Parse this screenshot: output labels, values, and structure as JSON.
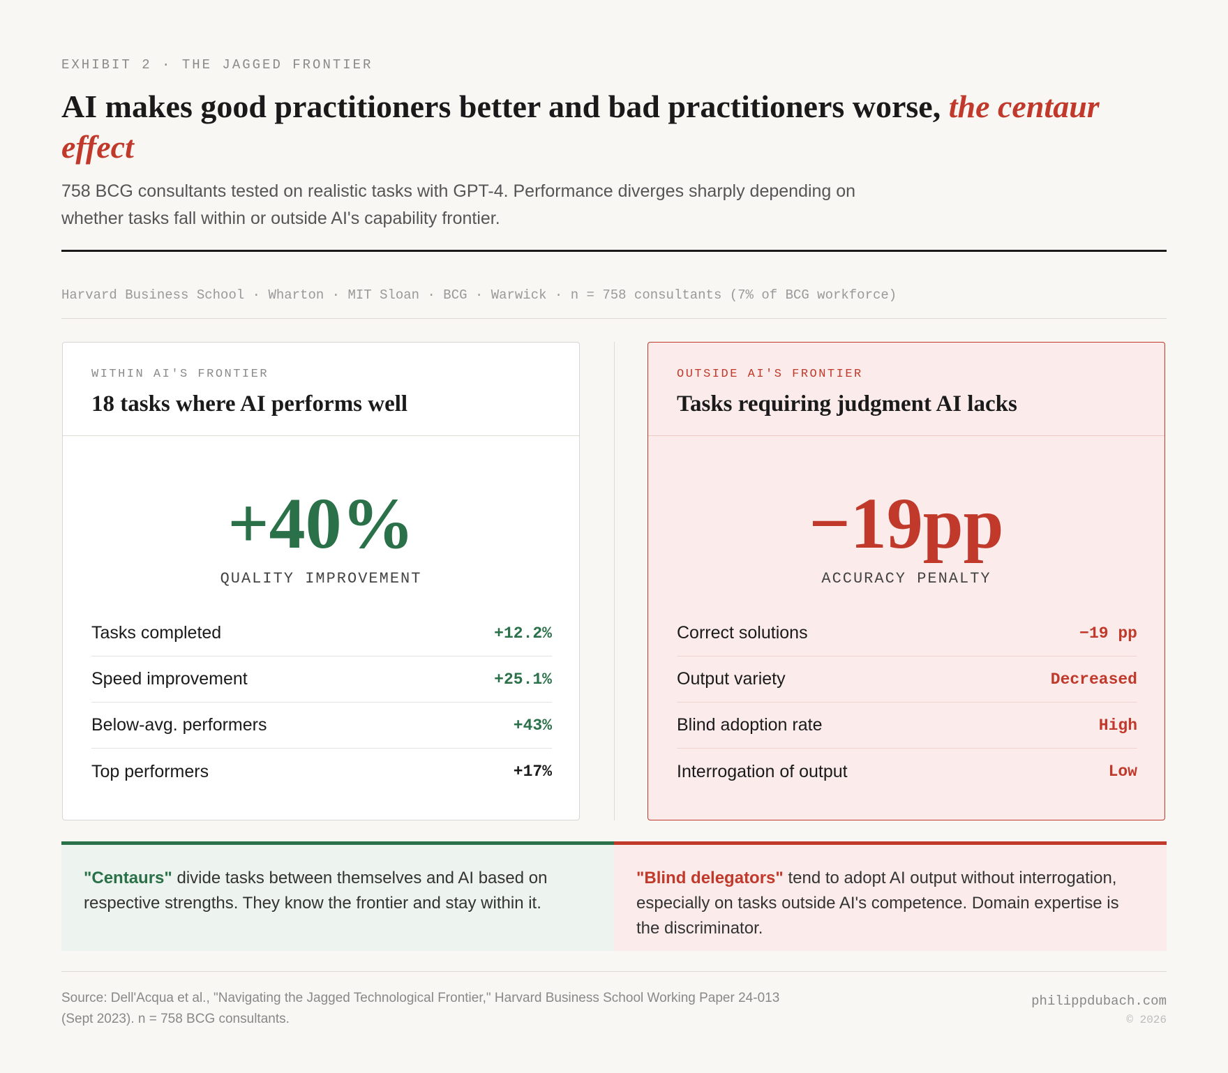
{
  "header": {
    "eyebrow": "EXHIBIT 2 · THE JAGGED FRONTIER",
    "title": "AI makes good practitioners better and bad practitioners worse, ",
    "title_accent": "the centaur effect",
    "subtitle": "758 BCG consultants tested on realistic tasks with GPT-4. Performance diverges sharply depending on whether tasks fall within or outside AI's capability frontier.",
    "sources": "Harvard Business School · Wharton · MIT Sloan · BCG · Warwick · n = 758 consultants (7% of BCG workforce)"
  },
  "cards": [
    {
      "eyebrow": "WITHIN AI'S FRONTIER",
      "title": "18 tasks where AI performs well",
      "big": "+40%",
      "big_label": "QUALITY IMPROVEMENT",
      "rows": [
        [
          "Tasks completed",
          "+12.2%"
        ],
        [
          "Speed improvement",
          "+25.1%"
        ],
        [
          "Below-avg. performers",
          "+43%"
        ],
        [
          "Top performers",
          "+17%"
        ]
      ]
    },
    {
      "eyebrow": "OUTSIDE AI'S FRONTIER",
      "title": "Tasks requiring judgment AI lacks",
      "big": "−19pp",
      "big_label": "ACCURACY PENALTY",
      "rows": [
        [
          "Correct solutions",
          "−19 pp"
        ],
        [
          "Output variety",
          "Decreased"
        ],
        [
          "Blind adoption rate",
          "High"
        ],
        [
          "Interrogation of output",
          "Low"
        ]
      ]
    }
  ],
  "notes": [
    {
      "term": "\"Centaurs\"",
      "text": " divide tasks between themselves and AI based on respective strengths. They know the frontier and stay within it."
    },
    {
      "term": "\"Blind delegators\"",
      "text": " tend to adopt AI output without interrogation, especially on tasks outside AI's competence. Domain expertise is the discriminator."
    }
  ],
  "footer": {
    "source": "Source: Dell'Acqua et al., \"Navigating the Jagged Technological Frontier,\" Harvard Business School Working Paper 24-013 (Sept 2023). n = 758 BCG consultants.",
    "brand": "philippdubach.com",
    "copyright": "© 2026"
  }
}
